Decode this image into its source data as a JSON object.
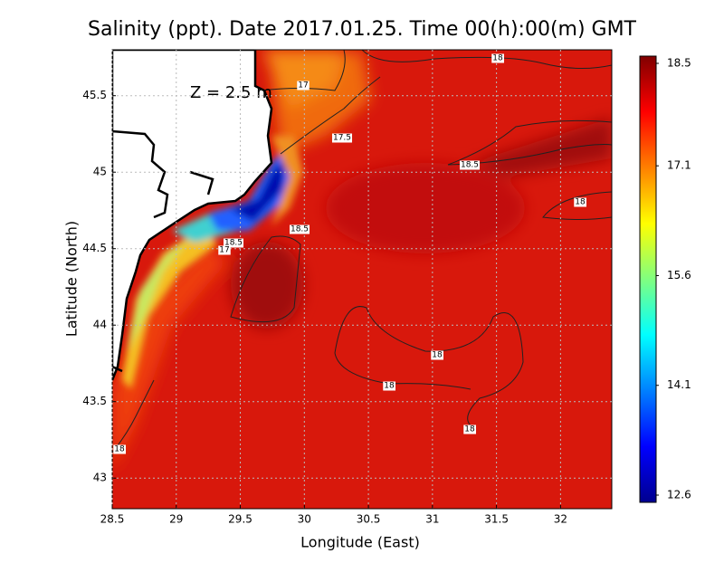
{
  "chart_data": {
    "type": "heatmap",
    "title": "Salinity (ppt). Date 2017.01.25. Time 00(h):00(m) GMT",
    "annotation": "Z = 2.5 m",
    "x_label": "Longitude (East)",
    "y_label": "Latitude (North)",
    "xlim": [
      28.5,
      32.4
    ],
    "xticks": [
      28.5,
      29,
      29.5,
      30,
      30.5,
      31,
      31.5,
      32
    ],
    "ylim": [
      42.8,
      45.8
    ],
    "yticks": [
      43,
      43.5,
      44,
      44.5,
      45,
      45.5
    ],
    "grid": true,
    "colorbar": {
      "lim": [
        12.6,
        18.5
      ],
      "ticks": [
        12.6,
        14.1,
        15.6,
        17.1,
        18.5
      ],
      "colors": [
        "#00008f",
        "#0000ff",
        "#0080ff",
        "#00ffff",
        "#80ff80",
        "#ffff00",
        "#ff8000",
        "#ff0000",
        "#800000"
      ]
    },
    "contour_labels": [
      18,
      17,
      17.5,
      18.5,
      18,
      18.5,
      18.5,
      17,
      18,
      18,
      18,
      18
    ]
  }
}
